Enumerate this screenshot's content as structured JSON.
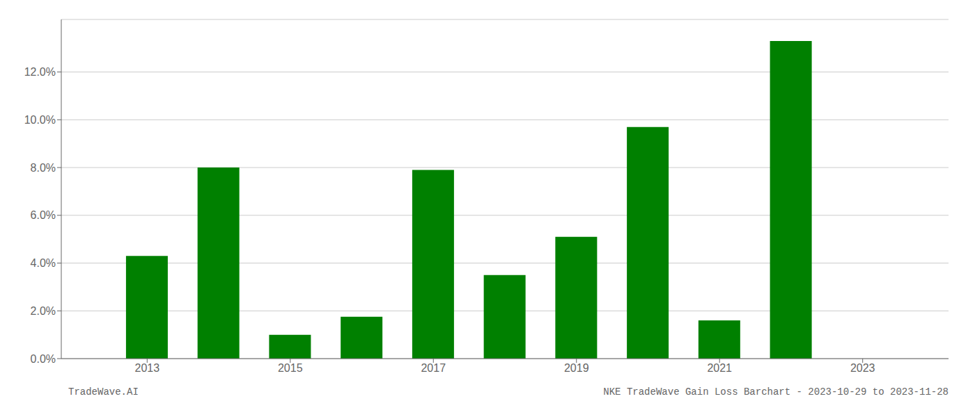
{
  "chart_data": {
    "type": "bar",
    "x": [
      2013,
      2014,
      2015,
      2016,
      2017,
      2018,
      2019,
      2020,
      2021,
      2022
    ],
    "values": [
      0.043,
      0.08,
      0.01,
      0.0175,
      0.079,
      0.035,
      0.051,
      0.097,
      0.016,
      0.133
    ],
    "color": "#008000",
    "xlim": [
      2011.8,
      2024.2
    ],
    "xticks": [
      2013,
      2015,
      2017,
      2019,
      2021,
      2023
    ],
    "ylim": [
      0.0,
      0.142
    ],
    "yticks": [
      {
        "value": 0.0,
        "label": "0.0%"
      },
      {
        "value": 0.02,
        "label": "2.0%"
      },
      {
        "value": 0.04,
        "label": "4.0%"
      },
      {
        "value": 0.06,
        "label": "6.0%"
      },
      {
        "value": 0.08,
        "label": "8.0%"
      },
      {
        "value": 0.1,
        "label": "10.0%"
      },
      {
        "value": 0.12,
        "label": "12.0%"
      }
    ],
    "grid": true,
    "annotations": [
      "TradeWave.AI",
      "NKE TradeWave Gain Loss Barchart - 2023-10-29 to 2023-11-28"
    ]
  }
}
